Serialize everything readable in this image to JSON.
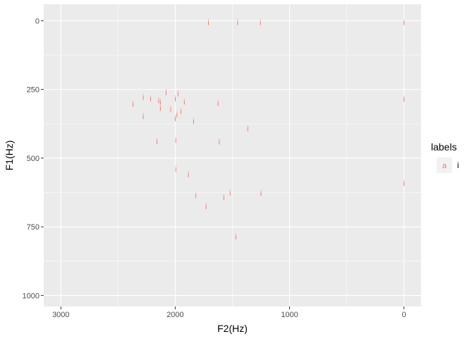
{
  "chart_data": {
    "type": "scatter",
    "title": "",
    "xlabel": "F2(Hz)",
    "ylabel": "F1(Hz)",
    "x_reversed": true,
    "y_reversed": true,
    "xlim": [
      3150,
      -150
    ],
    "ylim": [
      -60,
      1040
    ],
    "x_ticks": [
      3000,
      2000,
      1000,
      0
    ],
    "x_tick_labels": [
      "3000",
      "2000",
      "1000",
      "0"
    ],
    "y_ticks": [
      0,
      250,
      500,
      750,
      1000
    ],
    "y_tick_labels": [
      "0",
      "250",
      "500",
      "750",
      "1000"
    ],
    "grid": true,
    "point_color": "#F8766D",
    "panel_color": "#EBEBEB",
    "grid_color": "#FFFFFF",
    "legend": {
      "title": "labels",
      "key_glyph": "a",
      "entries": [
        "i"
      ],
      "placement": "right"
    },
    "points": [
      {
        "label": "i",
        "x": 1710,
        "y": 5
      },
      {
        "label": "i",
        "x": 1455,
        "y": 5
      },
      {
        "label": "i",
        "x": 1255,
        "y": 5
      },
      {
        "label": "i",
        "x": 0,
        "y": 5
      },
      {
        "label": "i",
        "x": 2080,
        "y": 260
      },
      {
        "label": "i",
        "x": 1975,
        "y": 265
      },
      {
        "label": "i",
        "x": 2280,
        "y": 278
      },
      {
        "label": "i",
        "x": 2215,
        "y": 283
      },
      {
        "label": "i",
        "x": 2000,
        "y": 283
      },
      {
        "label": "i",
        "x": 2145,
        "y": 290
      },
      {
        "label": "i",
        "x": 2130,
        "y": 295
      },
      {
        "label": "i",
        "x": 1920,
        "y": 295
      },
      {
        "label": "i",
        "x": 2370,
        "y": 303
      },
      {
        "label": "i",
        "x": 1625,
        "y": 300
      },
      {
        "label": "i",
        "x": 0,
        "y": 285
      },
      {
        "label": "i",
        "x": 2130,
        "y": 318
      },
      {
        "label": "i",
        "x": 2040,
        "y": 322
      },
      {
        "label": "i",
        "x": 1950,
        "y": 330
      },
      {
        "label": "i",
        "x": 1985,
        "y": 342
      },
      {
        "label": "i",
        "x": 2280,
        "y": 348
      },
      {
        "label": "i",
        "x": 2000,
        "y": 355
      },
      {
        "label": "i",
        "x": 1840,
        "y": 365
      },
      {
        "label": "i",
        "x": 1365,
        "y": 392
      },
      {
        "label": "i",
        "x": 2160,
        "y": 438
      },
      {
        "label": "i",
        "x": 1995,
        "y": 435
      },
      {
        "label": "i",
        "x": 1615,
        "y": 440
      },
      {
        "label": "i",
        "x": 1995,
        "y": 540
      },
      {
        "label": "i",
        "x": 1885,
        "y": 560
      },
      {
        "label": "i",
        "x": 0,
        "y": 590
      },
      {
        "label": "i",
        "x": 1520,
        "y": 625
      },
      {
        "label": "i",
        "x": 1250,
        "y": 628
      },
      {
        "label": "i",
        "x": 1820,
        "y": 635
      },
      {
        "label": "i",
        "x": 1575,
        "y": 643
      },
      {
        "label": "i",
        "x": 1730,
        "y": 675
      },
      {
        "label": "i",
        "x": 1470,
        "y": 785
      }
    ]
  }
}
